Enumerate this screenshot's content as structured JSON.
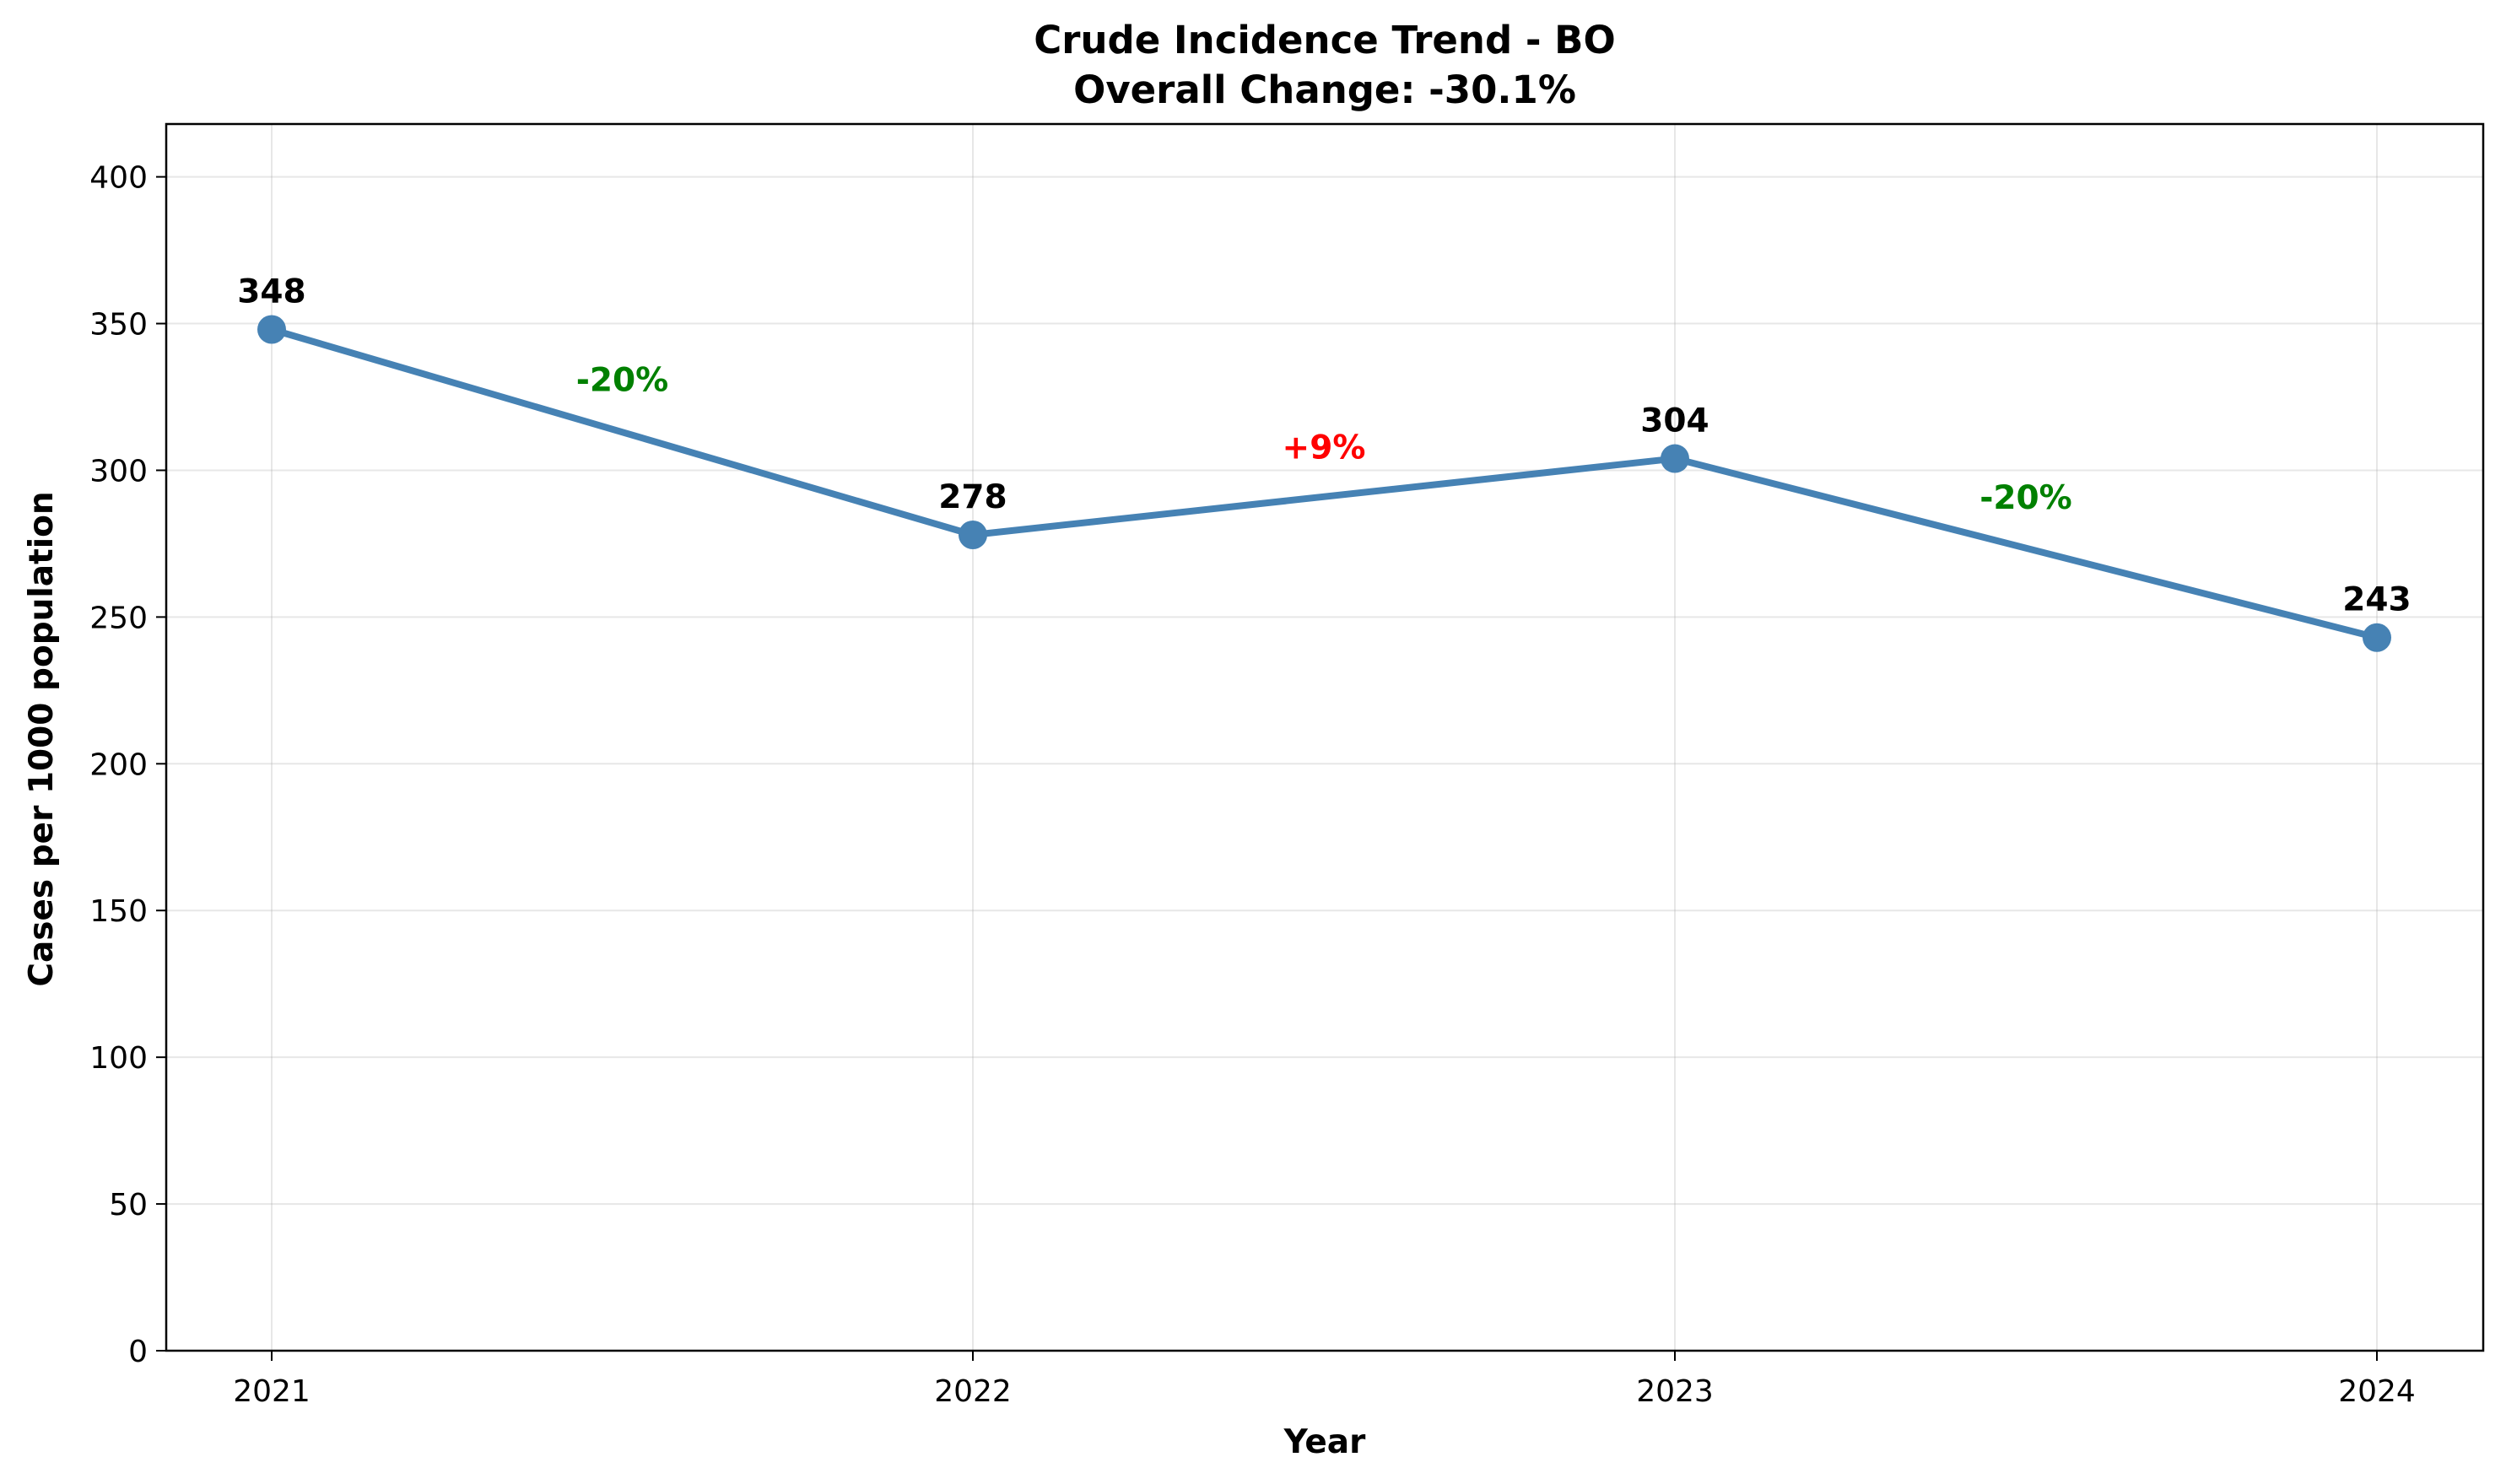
{
  "chart_data": {
    "type": "line",
    "title": "Crude Incidence Trend - BO",
    "subtitle": "Overall Change: -30.1%",
    "xlabel": "Year",
    "ylabel": "Cases per 1000 population",
    "categories": [
      "2021",
      "2022",
      "2023",
      "2024"
    ],
    "values": [
      348,
      278,
      304,
      243
    ],
    "data_labels": [
      "348",
      "278",
      "304",
      "243"
    ],
    "ylim": [
      0,
      418
    ],
    "yticks": [
      0,
      50,
      100,
      150,
      200,
      250,
      300,
      350,
      400
    ],
    "ytick_labels": [
      "0",
      "50",
      "100",
      "150",
      "200",
      "250",
      "300",
      "350",
      "400"
    ],
    "grid": true,
    "changes": [
      {
        "label": "-20%",
        "direction": "down",
        "value_at": 331
      },
      {
        "label": "+9%",
        "direction": "up",
        "value_at": 308
      },
      {
        "label": "-20%",
        "direction": "down",
        "value_at": 291
      }
    ],
    "colors": {
      "line": "#4682b4",
      "decrease": "#008000",
      "increase": "#ff0000"
    }
  }
}
